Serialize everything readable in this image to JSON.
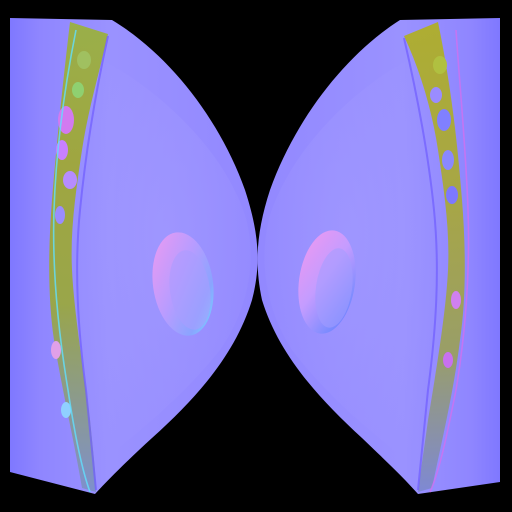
{
  "image": {
    "kind": "normal-map texture (UV layout)",
    "background_color": "#000000",
    "colors": {
      "base_flat_normal": "#8080ff",
      "light_region": "#9a90ff",
      "edge_purple": "#7d6bff",
      "seam_yellow": "#a8b020",
      "seam_green": "#70c040",
      "seam_magenta": "#d070f0",
      "seam_cyan": "#60e0ff",
      "bump_pink": "#e890f0",
      "bump_cyan": "#80e8ff",
      "bump_blue": "#6a70ff"
    }
  }
}
